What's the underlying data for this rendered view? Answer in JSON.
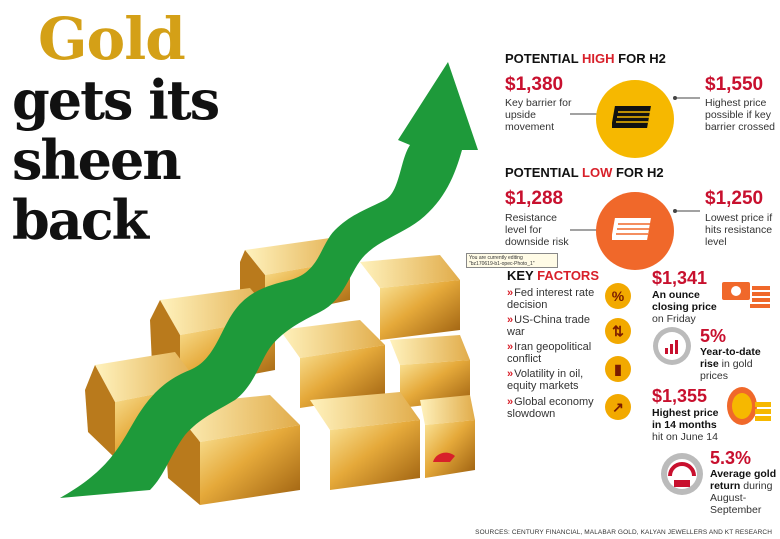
{
  "headline": {
    "line1": "Gold",
    "line2": "gets its",
    "line3": "sheen",
    "line4": "back"
  },
  "potential_high": {
    "heading_pre": "POTENTIAL ",
    "heading_hi": "HIGH",
    "heading_post": " FOR H2",
    "left_value": "$1,380",
    "left_desc": "Key barrier for upside movement",
    "right_value": "$1,550",
    "right_desc": "Highest price possible if key barrier crossed"
  },
  "potential_low": {
    "heading_pre": "POTENTIAL ",
    "heading_hi": "LOW",
    "heading_post": " FOR H2",
    "left_value": "$1,288",
    "left_desc": "Resistance level for downside risk",
    "right_value": "$1,250",
    "right_desc": "Lowest price if hits resistance level"
  },
  "tooltip": {
    "line1": "You are currently editing",
    "line2": "\"bz170619-b1-opec-Photo_1\""
  },
  "key_factors": {
    "heading_pre": "KEY ",
    "heading_hi": "FACTORS",
    "items": [
      {
        "label": "Fed interest rate decision",
        "icon": "percent-icon",
        "glyph": "%"
      },
      {
        "label": "US-China trade war",
        "icon": "trade-arrows-icon",
        "glyph": "⇅"
      },
      {
        "label": "Iran geopolitical conflict",
        "icon": "oil-barrel-icon",
        "glyph": "▮"
      },
      {
        "label": "Volatility in oil, equity markets",
        "icon": "chart-up-icon",
        "glyph": "↗"
      },
      {
        "label": "Global economy slowdown",
        "icon": "chart-down-icon",
        "glyph": "↘"
      }
    ]
  },
  "stats": [
    {
      "value": "$1,341",
      "bold": "An ounce closing price",
      "rest": " on Friday",
      "icon": "cash-stack-icon"
    },
    {
      "value": "5%",
      "bold": "Year-to-date rise",
      "rest": " in gold prices",
      "icon": "gauge-chart-icon"
    },
    {
      "value": "$1,355",
      "bold": "Highest price in 14 months",
      "rest": " hit on June 14",
      "icon": "gold-coins-icon"
    },
    {
      "value": "5.3%",
      "bold": "Average gold return",
      "rest": " during August-September",
      "icon": "gold-gauge-icon"
    }
  ],
  "sources": "SOURCES: CENTURY FINANCIAL, MALABAR GOLD, KALYAN JEWELLERS AND KT RESEARCH",
  "colors": {
    "gold": "#d4a017",
    "red": "#c8102e",
    "green": "#1e9a3a",
    "yellow": "#f6b800",
    "orange": "#f0682a"
  }
}
